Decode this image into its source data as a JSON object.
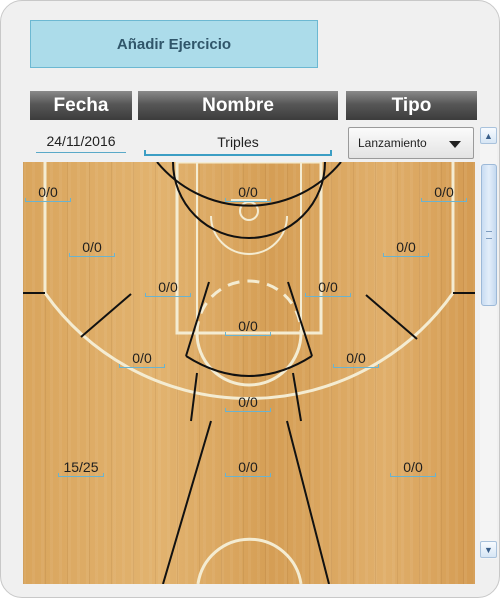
{
  "form": {
    "add_button_label": "Añadir Ejercicio",
    "headers": {
      "fecha": "Fecha",
      "nombre": "Nombre",
      "tipo": "Tipo"
    },
    "fecha_value": "24/11/2016",
    "nombre_value": "Triples",
    "tipo_selected": "Lanzamiento"
  },
  "court": {
    "zones": {
      "corner_left": "0/0",
      "top_key": "0/0",
      "corner_right": "0/0",
      "wing_left_upper": "0/0",
      "wing_right_upper": "0/0",
      "elbow_left": "0/0",
      "elbow_right": "0/0",
      "paint": "0/0",
      "wing_left_mid": "0/0",
      "wing_right_mid": "0/0",
      "top_of_arc": "0/0",
      "three_left": "15/25",
      "three_center": "0/0",
      "three_right": "0/0"
    }
  },
  "colors": {
    "add_button_bg": "#acdcea",
    "header_bg": "#4a4a4a",
    "underline_accent": "#3c9ec4"
  },
  "icons": {
    "dropdown": "chevron-down-icon",
    "scroll_up": "arrow-up-icon",
    "scroll_down": "arrow-down-icon"
  }
}
